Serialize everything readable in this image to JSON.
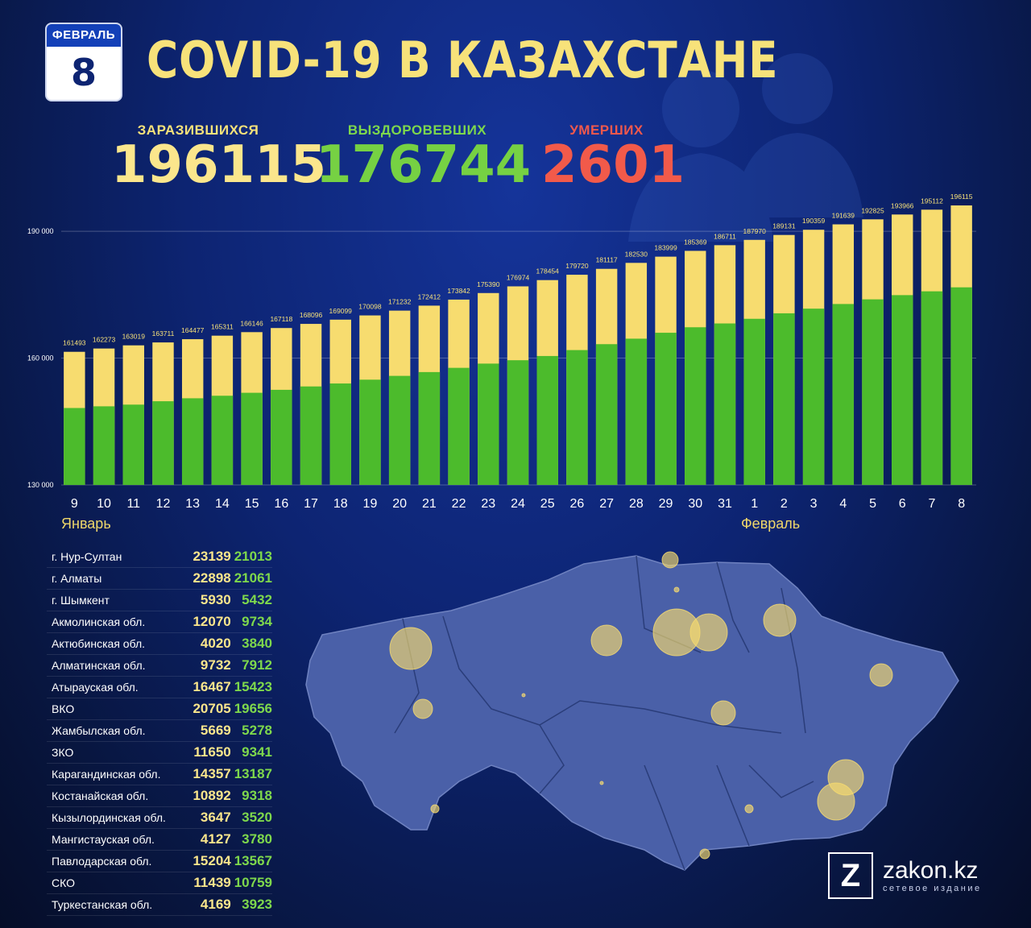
{
  "header": {
    "calendar_month": "ФЕВРАЛЬ",
    "calendar_day": "8",
    "title": "COVID-19 В КАЗАХСТАНЕ"
  },
  "stats": {
    "infected_label": "ЗАРАЗИВШИХСЯ",
    "infected_value": "196115",
    "recovered_label": "ВЫЗДОРОВЕВШИХ",
    "recovered_value": "176744",
    "dead_label": "УМЕРШИХ",
    "dead_value": "2601"
  },
  "colors": {
    "infected": "#f7dc6f",
    "recovered": "#4cbb2c",
    "dead": "#f25a4a",
    "background": "#0d2472"
  },
  "chart_data": {
    "type": "bar",
    "categories": [
      "9",
      "10",
      "11",
      "12",
      "13",
      "14",
      "15",
      "16",
      "17",
      "18",
      "19",
      "20",
      "21",
      "22",
      "23",
      "24",
      "25",
      "26",
      "27",
      "28",
      "29",
      "30",
      "31",
      "1",
      "2",
      "3",
      "4",
      "5",
      "6",
      "7",
      "8"
    ],
    "month_labels": [
      "Январь",
      "Февраль"
    ],
    "series": [
      {
        "values": [
          161493,
          162273,
          163019,
          163711,
          164477,
          165311,
          166146,
          167118,
          168096,
          169099,
          170098,
          171232,
          172412,
          173842,
          175390,
          176974,
          178454,
          179720,
          181117,
          182530,
          183999,
          185369,
          186711,
          187970,
          189131,
          190359,
          191639,
          192825,
          193966,
          195112,
          196115
        ]
      },
      {
        "values": [
          148200,
          148600,
          149000,
          149800,
          150500,
          151100,
          151800,
          152500,
          153300,
          154000,
          154900,
          155800,
          156700,
          157700,
          158700,
          159500,
          160500,
          161900,
          163300,
          164600,
          166000,
          167300,
          168200,
          169300,
          170600,
          171700,
          172800,
          173900,
          174900,
          175800,
          176744
        ]
      }
    ],
    "y_ticks": [
      "130 000",
      "160 000",
      "190 000"
    ],
    "y_tick_values": [
      130000,
      160000,
      190000
    ],
    "ylim": [
      130000,
      196500
    ]
  },
  "regions": [
    {
      "name": "г. Нур-Султан",
      "infected": "23139",
      "recovered": "21013"
    },
    {
      "name": "г. Алматы",
      "infected": "22898",
      "recovered": "21061"
    },
    {
      "name": "г. Шымкент",
      "infected": "5930",
      "recovered": "5432"
    },
    {
      "name": "Акмолинская обл.",
      "infected": "12070",
      "recovered": "9734"
    },
    {
      "name": "Актюбинская обл.",
      "infected": "4020",
      "recovered": "3840"
    },
    {
      "name": "Алматинская обл.",
      "infected": "9732",
      "recovered": "7912"
    },
    {
      "name": "Атырауская обл.",
      "infected": "16467",
      "recovered": "15423"
    },
    {
      "name": "ВКО",
      "infected": "20705",
      "recovered": "19656"
    },
    {
      "name": "Жамбылская обл.",
      "infected": "5669",
      "recovered": "5278"
    },
    {
      "name": "ЗКО",
      "infected": "11650",
      "recovered": "9341"
    },
    {
      "name": "Карагандинская обл.",
      "infected": "14357",
      "recovered": "13187"
    },
    {
      "name": "Костанайская обл.",
      "infected": "10892",
      "recovered": "9318"
    },
    {
      "name": "Кызылординская обл.",
      "infected": "3647",
      "recovered": "3520"
    },
    {
      "name": "Мангистауская обл.",
      "infected": "4127",
      "recovered": "3780"
    },
    {
      "name": "Павлодарская обл.",
      "infected": "15204",
      "recovered": "13567"
    },
    {
      "name": "СКО",
      "infected": "11439",
      "recovered": "10759"
    },
    {
      "name": "Туркестанская обл.",
      "infected": "4169",
      "recovered": "3923"
    }
  ],
  "brand": {
    "logo_letter": "Z",
    "site": "zakon.kz",
    "tagline": "сетевое издание"
  }
}
